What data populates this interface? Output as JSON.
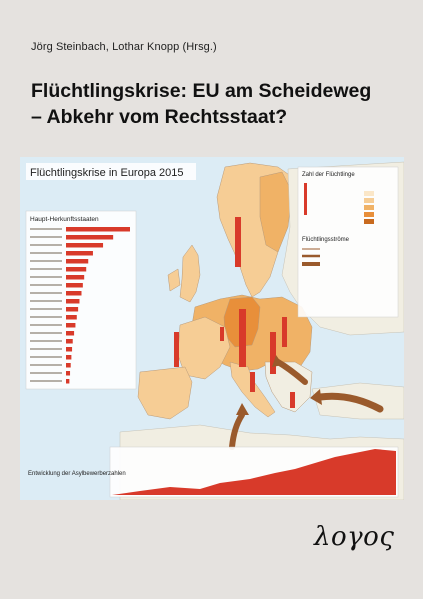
{
  "authors": "Jörg Steinbach, Lothar Knopp (Hrsg.)",
  "title_line1": "Flüchtlingskrise: EU am Scheideweg",
  "title_line2": "– Abkehr vom Rechtsstaat?",
  "publisher": "λογος",
  "map": {
    "title": "Flüchtlingskrise in Europa 2015",
    "origin_header": "Haupt-Herkunftsstaaten",
    "legend_count_title": "Zahl der Flüchtlinge",
    "legend_flows_title": "Flüchtlingsströme",
    "timeline_title": "Entwicklung der Asylbewerberzahlen",
    "origin_values": [
      95,
      70,
      55,
      40,
      33,
      30,
      27,
      25,
      23,
      20,
      18,
      16,
      14,
      12,
      10,
      9,
      8,
      7,
      6,
      5
    ]
  },
  "colors": {
    "background": "#e5e2df",
    "sea": "#dcecf5",
    "land": "#f1eee2",
    "eu_light": "#f6cd95",
    "eu_mid": "#f0b266",
    "eu_dark": "#e88f3a",
    "bar_red": "#d83a2a",
    "arrow_brown": "#9a5a2c"
  }
}
